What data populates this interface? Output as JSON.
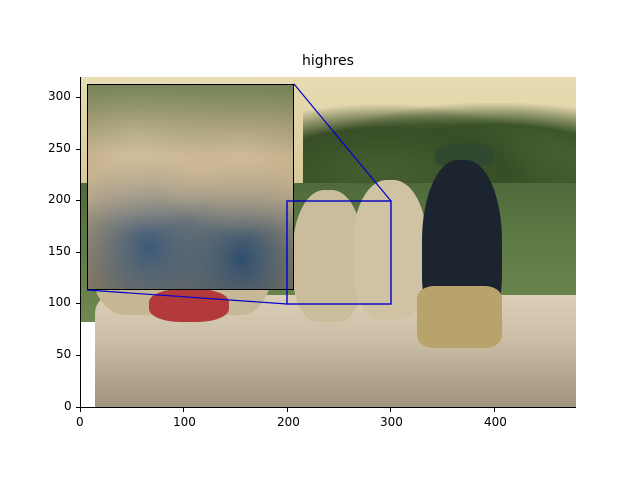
{
  "title": "highres",
  "x_ticks": [
    "0",
    "100",
    "200",
    "300",
    "400"
  ],
  "y_ticks": [
    "0",
    "50",
    "100",
    "150",
    "200",
    "250",
    "300"
  ],
  "indicator_color": "#0000cc"
}
